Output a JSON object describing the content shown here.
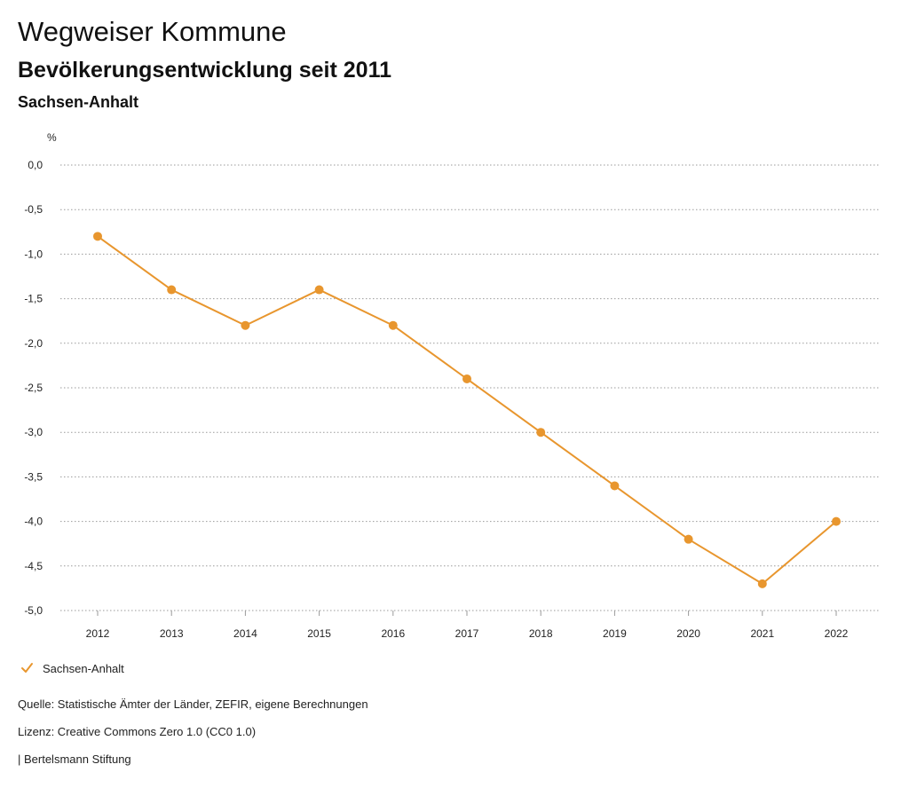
{
  "header": {
    "title": "Wegweiser Kommune",
    "subtitle": "Bevölkerungsentwicklung seit 2011",
    "region": "Sachsen-Anhalt"
  },
  "chart_data": {
    "type": "line",
    "ylabel": "%",
    "xlabel": "",
    "categories": [
      "2012",
      "2013",
      "2014",
      "2015",
      "2016",
      "2017",
      "2018",
      "2019",
      "2020",
      "2021",
      "2022"
    ],
    "series": [
      {
        "name": "Sachsen-Anhalt",
        "color": "#e8962e",
        "values": [
          -0.8,
          -1.4,
          -1.8,
          -1.4,
          -1.8,
          -2.4,
          -3.0,
          -3.6,
          -4.2,
          -4.7,
          -4.0
        ]
      }
    ],
    "ylim": [
      -5.0,
      0.0
    ],
    "yticks": [
      0.0,
      -0.5,
      -1.0,
      -1.5,
      -2.0,
      -2.5,
      -3.0,
      -3.5,
      -4.0,
      -4.5,
      -5.0
    ],
    "ytick_labels": [
      "0,0",
      "-0,5",
      "-1,0",
      "-1,5",
      "-2,0",
      "-2,5",
      "-3,0",
      "-3,5",
      "-4,0",
      "-4,5",
      "-5,0"
    ],
    "grid": true,
    "legend": "bottom-left"
  },
  "legend": {
    "label": "Sachsen-Anhalt"
  },
  "footer": {
    "source": "Quelle: Statistische Ämter der Länder, ZEFIR, eigene Berechnungen",
    "license": "Lizenz: Creative Commons Zero 1.0 (CC0 1.0)",
    "brand": "| Bertelsmann Stiftung"
  }
}
